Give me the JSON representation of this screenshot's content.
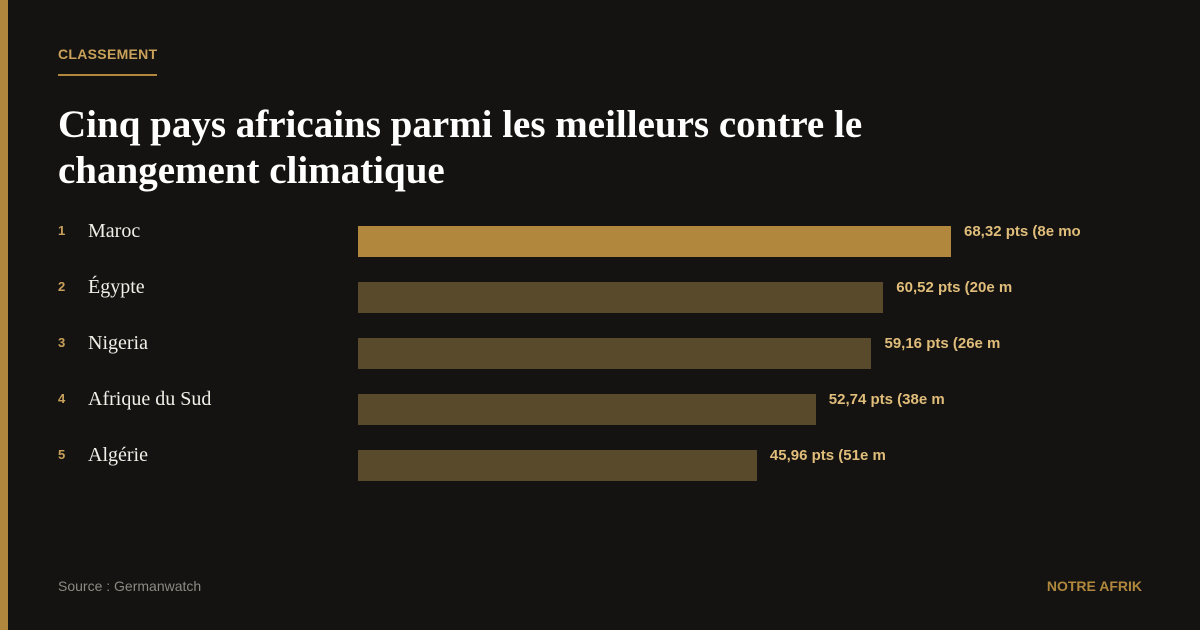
{
  "header": {
    "kicker": "CLASSEMENT"
  },
  "chart_data": {
    "type": "bar",
    "orientation": "horizontal",
    "title": "Cinq pays africains parmi les meilleurs contre le changement climatique",
    "ranks": [
      1,
      2,
      3,
      4,
      5
    ],
    "categories": [
      "Maroc",
      "Égypte",
      "Nigeria",
      "Afrique du Sud",
      "Algérie"
    ],
    "values": [
      68.32,
      60.52,
      59.16,
      52.74,
      45.96
    ],
    "value_labels": [
      "68,32 pts (8e mo",
      "60,52 pts (20e m",
      "59,16 pts (26e m",
      "52,74 pts (38e m",
      "45,96 pts (51e m"
    ],
    "colors": [
      "#b0873c",
      "#5a4a2c",
      "#5a4a2c",
      "#5a4a2c",
      "#5a4a2c"
    ]
  },
  "footer": {
    "source": "Source : Germanwatch",
    "brand": "NOTRE AFRIK"
  }
}
